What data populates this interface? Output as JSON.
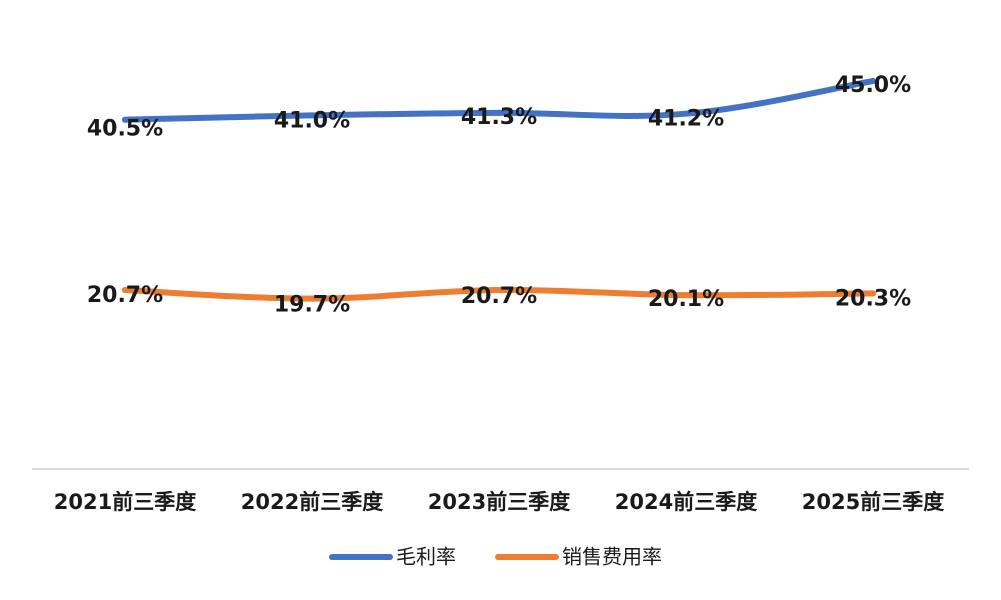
{
  "chart_data": {
    "type": "line",
    "categories": [
      "2021前三季度",
      "2022前三季度",
      "2023前三季度",
      "2024前三季度",
      "2025前三季度"
    ],
    "series": [
      {
        "name": "毛利率",
        "values": [
          40.5,
          41.0,
          41.3,
          41.2,
          45.0
        ],
        "labels": [
          "40.5%",
          "41.0%",
          "41.3%",
          "41.2%",
          "45.0%"
        ],
        "color": "#4472C4"
      },
      {
        "name": "销售费用率",
        "values": [
          20.7,
          19.7,
          20.7,
          20.1,
          20.3
        ],
        "labels": [
          "20.7%",
          "19.7%",
          "20.7%",
          "20.1%",
          "20.3%"
        ],
        "color": "#ED7D31"
      }
    ],
    "title": "",
    "xlabel": "",
    "ylabel": "",
    "grid": false,
    "legend": "bottom"
  }
}
